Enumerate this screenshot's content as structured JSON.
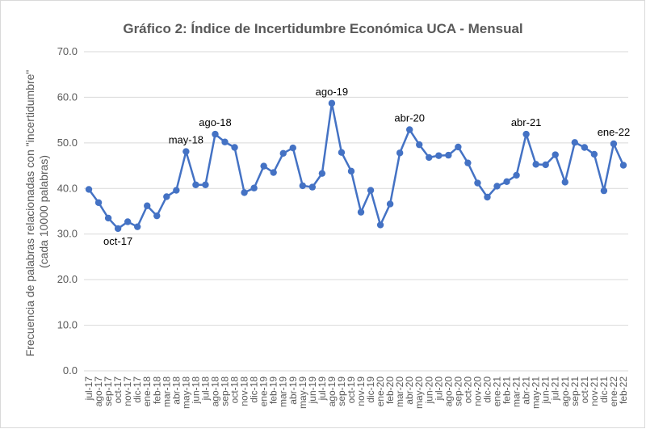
{
  "chart_data": {
    "type": "line",
    "title": "Gráfico 2: Índice de Incertidumbre Económica UCA - Mensual",
    "ylabel_line1": "Frecuencia de palabras relacionadas con \"incertidumbre\"",
    "ylabel_line2": "(cada 10000 palabras)",
    "xlabel": "",
    "ylim": [
      0,
      70
    ],
    "yticks": [
      "0.0",
      "10.0",
      "20.0",
      "30.0",
      "40.0",
      "50.0",
      "60.0",
      "70.0"
    ],
    "grid": true,
    "line_color": "#4472c4",
    "categories": [
      "jul-17",
      "ago-17",
      "sep-17",
      "oct-17",
      "nov-17",
      "dic-17",
      "ene-18",
      "feb-18",
      "mar-18",
      "abr-18",
      "may-18",
      "jun-18",
      "jul-18",
      "ago-18",
      "sep-18",
      "oct-18",
      "nov-18",
      "dic-18",
      "ene-19",
      "feb-19",
      "mar-19",
      "abr-19",
      "may-19",
      "jun-19",
      "jul-19",
      "ago-19",
      "sep-19",
      "oct-19",
      "nov-19",
      "dic-19",
      "ene-20",
      "feb-20",
      "mar-20",
      "abr-20",
      "may-20",
      "jun-20",
      "jul-20",
      "ago-20",
      "sep-20",
      "oct-20",
      "nov-20",
      "dic-20",
      "ene-21",
      "feb-21",
      "mar-21",
      "abr-21",
      "may-21",
      "jun-21",
      "jul-21",
      "ago-21",
      "sep-21",
      "oct-21",
      "nov-21",
      "dic-21",
      "ene-22",
      "feb-22"
    ],
    "values": [
      39.8,
      36.9,
      33.5,
      31.2,
      32.7,
      31.6,
      36.2,
      34.0,
      38.2,
      39.6,
      48.1,
      40.8,
      40.8,
      51.9,
      50.2,
      49.0,
      39.1,
      40.1,
      44.9,
      43.5,
      47.7,
      48.9,
      40.6,
      40.3,
      43.3,
      58.7,
      47.9,
      43.8,
      34.8,
      39.6,
      32.0,
      36.6,
      47.8,
      52.9,
      49.6,
      46.8,
      47.2,
      47.3,
      49.1,
      45.6,
      41.2,
      38.1,
      40.5,
      41.5,
      42.9,
      51.9,
      45.3,
      45.2,
      47.4,
      41.4,
      50.1,
      49.0,
      47.5,
      39.5,
      49.8,
      45.1
    ],
    "annotations": [
      {
        "label": "oct-17",
        "index": 3,
        "position": "below"
      },
      {
        "label": "may-18",
        "index": 10,
        "position": "above"
      },
      {
        "label": "ago-18",
        "index": 13,
        "position": "above"
      },
      {
        "label": "ago-19",
        "index": 25,
        "position": "above"
      },
      {
        "label": "abr-20",
        "index": 33,
        "position": "above"
      },
      {
        "label": "abr-21",
        "index": 45,
        "position": "above"
      },
      {
        "label": "ene-22",
        "index": 54,
        "position": "above"
      }
    ]
  }
}
